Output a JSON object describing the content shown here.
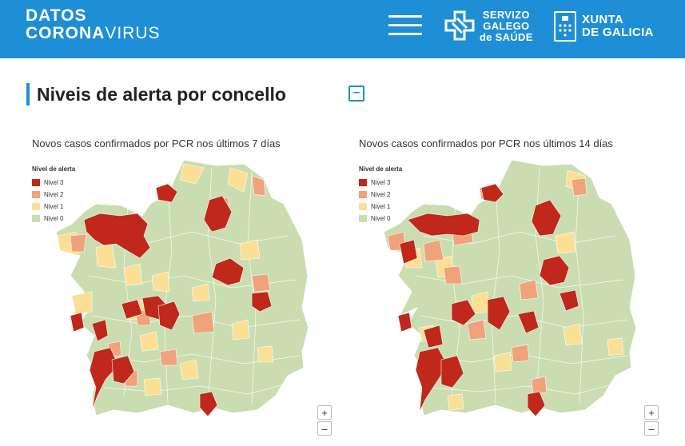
{
  "header": {
    "brand_line1": "DATOS",
    "brand_line2_bold": "CORONA",
    "brand_line2_light": "VIRUS",
    "menu_icon": "hamburger-menu-icon",
    "sgs_line1": "SERVIZO",
    "sgs_line2": "GALEGO",
    "sgs_line3": "de SAÚDE",
    "xunta_line1": "XUNTA",
    "xunta_line2": "DE GALICIA"
  },
  "section": {
    "title": "Niveis de alerta por concello",
    "collapse_label": "–"
  },
  "legend": {
    "title": "Nivel de alerta",
    "items": [
      "Nivel 3",
      "Nivel 2",
      "Nivel 1",
      "Nivel 0"
    ]
  },
  "colors": {
    "brand": "#1e8fd6",
    "nivel3": "#c0281b",
    "nivel2": "#f0a27a",
    "nivel1": "#fbdf95",
    "nivel0": "#c9ddb0"
  },
  "maps": [
    {
      "title": "Novos casos confirmados por PCR nos últimos 7 días",
      "zoom_in": "+",
      "zoom_out": "–"
    },
    {
      "title": "Novos casos confirmados por PCR nos últimos 14 días",
      "zoom_in": "+",
      "zoom_out": "–"
    }
  ]
}
